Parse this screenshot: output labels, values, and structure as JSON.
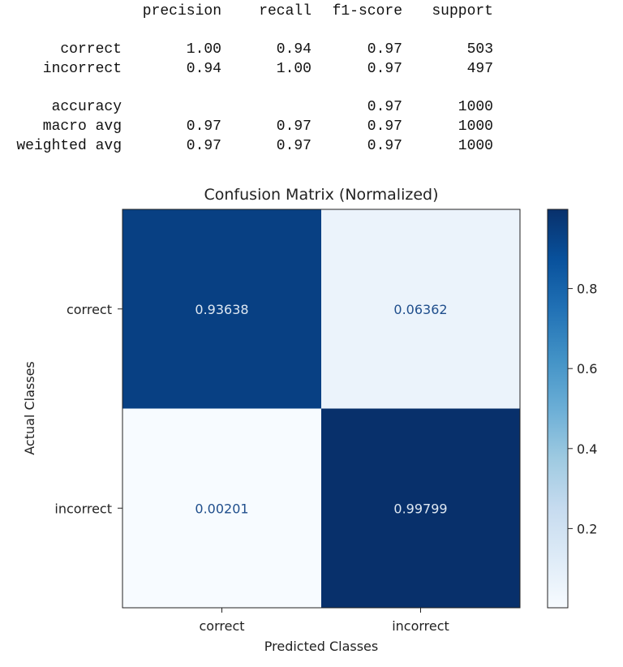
{
  "report": {
    "columns": [
      "precision",
      "recall",
      "f1-score",
      "support"
    ],
    "rows": [
      {
        "label": "correct",
        "values": [
          "1.00",
          "0.94",
          "0.97",
          "503"
        ]
      },
      {
        "label": "incorrect",
        "values": [
          "0.94",
          "1.00",
          "0.97",
          "497"
        ]
      },
      {
        "label": "accuracy",
        "values": [
          "",
          "",
          "0.97",
          "1000"
        ]
      },
      {
        "label": "macro avg",
        "values": [
          "0.97",
          "0.97",
          "0.97",
          "1000"
        ]
      },
      {
        "label": "weighted avg",
        "values": [
          "0.97",
          "0.97",
          "0.97",
          "1000"
        ]
      }
    ]
  },
  "chart_data": {
    "type": "heatmap",
    "title": "Confusion Matrix (Normalized)",
    "xlabel": "Predicted Classes",
    "ylabel": "Actual Classes",
    "x_categories": [
      "correct",
      "incorrect"
    ],
    "y_categories": [
      "correct",
      "incorrect"
    ],
    "values": [
      [
        0.93638,
        0.06362
      ],
      [
        0.00201,
        0.99799
      ]
    ],
    "value_labels": [
      [
        "0.93638",
        "0.06362"
      ],
      [
        "0.00201",
        "0.99799"
      ]
    ],
    "colormap": "Blues",
    "colorbar": {
      "range": [
        0.00201,
        0.99799
      ],
      "ticks": [
        "0.2",
        "0.4",
        "0.6",
        "0.8"
      ],
      "tick_values": [
        0.2,
        0.4,
        0.6,
        0.8
      ]
    }
  }
}
